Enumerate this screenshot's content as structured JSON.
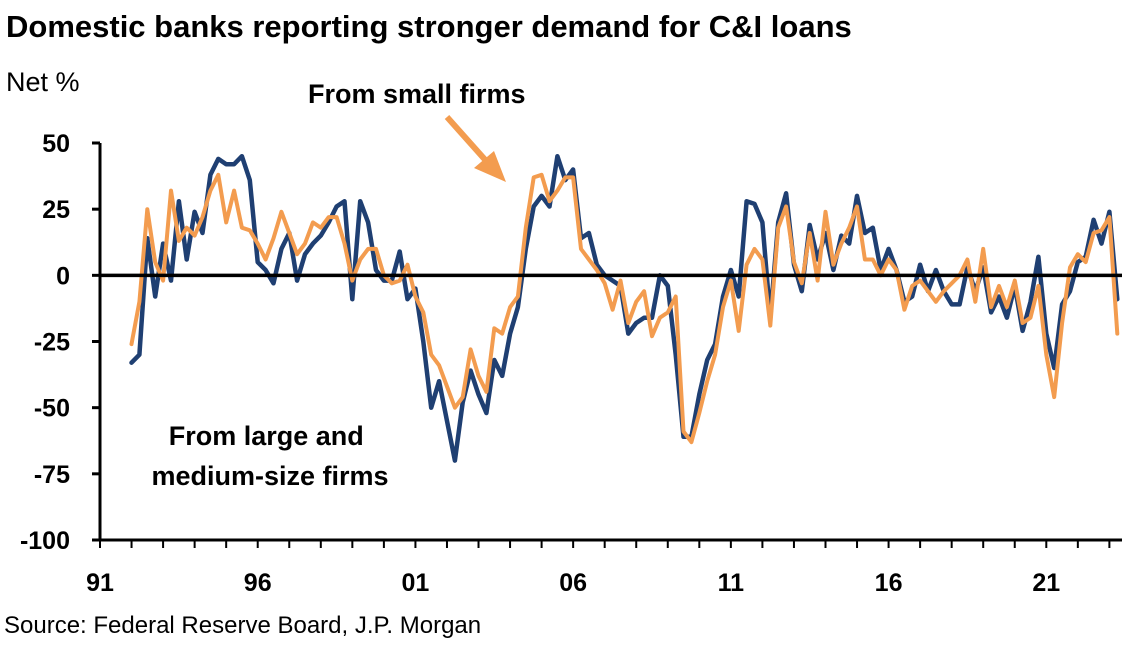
{
  "chart_data": {
    "type": "line",
    "title": "Domestic banks reporting stronger demand for C&I loans",
    "ylabel": "Net %",
    "ylim": [
      -100,
      50
    ],
    "yticks": [
      50,
      25,
      0,
      -25,
      -50,
      -75,
      -100
    ],
    "xlim": [
      1991,
      2023.4
    ],
    "xticks": [
      1991,
      1996,
      2001,
      2006,
      2011,
      2016,
      2021
    ],
    "xtick_labels": [
      "91",
      "96",
      "01",
      "06",
      "11",
      "16",
      "21"
    ],
    "zero_line": true,
    "grid": false,
    "source": "Source: Federal Reserve Board, J.P. Morgan",
    "annotations": [
      {
        "text": "From small firms",
        "arrow": true,
        "series": "small"
      },
      {
        "text_lines": [
          "From large and",
          "medium-size firms"
        ],
        "series": "large"
      }
    ],
    "series": [
      {
        "id": "large",
        "color": "#1f3f72",
        "points": [
          [
            1992.0,
            -33
          ],
          [
            1992.25,
            -30
          ],
          [
            1992.5,
            14
          ],
          [
            1992.75,
            -8
          ],
          [
            1993.0,
            12
          ],
          [
            1993.25,
            -2
          ],
          [
            1993.5,
            28
          ],
          [
            1993.75,
            6
          ],
          [
            1994.0,
            24
          ],
          [
            1994.25,
            16
          ],
          [
            1994.5,
            38
          ],
          [
            1994.75,
            44
          ],
          [
            1995.0,
            42
          ],
          [
            1995.25,
            42
          ],
          [
            1995.5,
            45
          ],
          [
            1995.75,
            36
          ],
          [
            1996.0,
            5
          ],
          [
            1996.25,
            2
          ],
          [
            1996.5,
            -3
          ],
          [
            1996.75,
            10
          ],
          [
            1997.0,
            16
          ],
          [
            1997.25,
            -2
          ],
          [
            1997.5,
            8
          ],
          [
            1997.75,
            12
          ],
          [
            1998.0,
            15
          ],
          [
            1998.25,
            20
          ],
          [
            1998.5,
            26
          ],
          [
            1998.75,
            28
          ],
          [
            1999.0,
            -9
          ],
          [
            1999.25,
            28
          ],
          [
            1999.5,
            20
          ],
          [
            1999.75,
            2
          ],
          [
            2000.0,
            -2
          ],
          [
            2000.25,
            -2
          ],
          [
            2000.5,
            9
          ],
          [
            2000.75,
            -9
          ],
          [
            2001.0,
            -5
          ],
          [
            2001.25,
            -25
          ],
          [
            2001.5,
            -50
          ],
          [
            2001.75,
            -40
          ],
          [
            2002.0,
            -55
          ],
          [
            2002.25,
            -70
          ],
          [
            2002.5,
            -48
          ],
          [
            2002.75,
            -36
          ],
          [
            2003.0,
            -45
          ],
          [
            2003.25,
            -52
          ],
          [
            2003.5,
            -32
          ],
          [
            2003.75,
            -38
          ],
          [
            2004.0,
            -22
          ],
          [
            2004.25,
            -12
          ],
          [
            2004.5,
            10
          ],
          [
            2004.75,
            26
          ],
          [
            2005.0,
            30
          ],
          [
            2005.25,
            26
          ],
          [
            2005.5,
            45
          ],
          [
            2005.75,
            36
          ],
          [
            2006.0,
            40
          ],
          [
            2006.25,
            14
          ],
          [
            2006.5,
            16
          ],
          [
            2006.75,
            4
          ],
          [
            2007.0,
            0
          ],
          [
            2007.25,
            -2
          ],
          [
            2007.5,
            -4
          ],
          [
            2007.75,
            -22
          ],
          [
            2008.0,
            -18
          ],
          [
            2008.25,
            -16
          ],
          [
            2008.5,
            -16
          ],
          [
            2008.75,
            0
          ],
          [
            2009.0,
            -4
          ],
          [
            2009.25,
            -30
          ],
          [
            2009.5,
            -61
          ],
          [
            2009.75,
            -61
          ],
          [
            2010.0,
            -45
          ],
          [
            2010.25,
            -32
          ],
          [
            2010.5,
            -26
          ],
          [
            2010.75,
            -8
          ],
          [
            2011.0,
            2
          ],
          [
            2011.25,
            -8
          ],
          [
            2011.5,
            28
          ],
          [
            2011.75,
            27
          ],
          [
            2012.0,
            20
          ],
          [
            2012.25,
            -16
          ],
          [
            2012.5,
            20
          ],
          [
            2012.75,
            31
          ],
          [
            2013.0,
            4
          ],
          [
            2013.25,
            -6
          ],
          [
            2013.5,
            19
          ],
          [
            2013.75,
            6
          ],
          [
            2014.0,
            16
          ],
          [
            2014.25,
            2
          ],
          [
            2014.5,
            15
          ],
          [
            2014.75,
            12
          ],
          [
            2015.0,
            30
          ],
          [
            2015.25,
            16
          ],
          [
            2015.5,
            18
          ],
          [
            2015.75,
            2
          ],
          [
            2016.0,
            10
          ],
          [
            2016.25,
            2
          ],
          [
            2016.5,
            -10
          ],
          [
            2016.75,
            -8
          ],
          [
            2017.0,
            4
          ],
          [
            2017.25,
            -6
          ],
          [
            2017.5,
            2
          ],
          [
            2017.75,
            -6
          ],
          [
            2018.0,
            -11
          ],
          [
            2018.25,
            -11
          ],
          [
            2018.5,
            3
          ],
          [
            2018.75,
            -6
          ],
          [
            2019.0,
            3
          ],
          [
            2019.25,
            -14
          ],
          [
            2019.5,
            -8
          ],
          [
            2019.75,
            -16
          ],
          [
            2020.0,
            -4
          ],
          [
            2020.25,
            -21
          ],
          [
            2020.5,
            -10
          ],
          [
            2020.75,
            7
          ],
          [
            2021.0,
            -22
          ],
          [
            2021.25,
            -35
          ],
          [
            2021.5,
            -11
          ],
          [
            2021.75,
            -6
          ],
          [
            2022.0,
            5
          ],
          [
            2022.25,
            7
          ],
          [
            2022.5,
            21
          ],
          [
            2022.75,
            12
          ],
          [
            2023.0,
            24
          ],
          [
            2023.25,
            -9
          ]
        ]
      },
      {
        "id": "small",
        "color": "#f39c4f",
        "points": [
          [
            1992.0,
            -26
          ],
          [
            1992.25,
            -10
          ],
          [
            1992.5,
            25
          ],
          [
            1992.75,
            5
          ],
          [
            1993.0,
            -2
          ],
          [
            1993.25,
            32
          ],
          [
            1993.5,
            13
          ],
          [
            1993.75,
            18
          ],
          [
            1994.0,
            15
          ],
          [
            1994.25,
            22
          ],
          [
            1994.5,
            32
          ],
          [
            1994.75,
            38
          ],
          [
            1995.0,
            20
          ],
          [
            1995.25,
            32
          ],
          [
            1995.5,
            18
          ],
          [
            1995.75,
            17
          ],
          [
            1996.0,
            12
          ],
          [
            1996.25,
            6
          ],
          [
            1996.5,
            14
          ],
          [
            1996.75,
            24
          ],
          [
            1997.0,
            16
          ],
          [
            1997.25,
            8
          ],
          [
            1997.5,
            12
          ],
          [
            1997.75,
            20
          ],
          [
            1998.0,
            18
          ],
          [
            1998.25,
            22
          ],
          [
            1998.5,
            22
          ],
          [
            1998.75,
            12
          ],
          [
            1999.0,
            -2
          ],
          [
            1999.25,
            6
          ],
          [
            1999.5,
            10
          ],
          [
            1999.75,
            10
          ],
          [
            2000.0,
            0
          ],
          [
            2000.25,
            -3
          ],
          [
            2000.5,
            -2
          ],
          [
            2000.75,
            4
          ],
          [
            2001.0,
            -8
          ],
          [
            2001.25,
            -14
          ],
          [
            2001.5,
            -30
          ],
          [
            2001.75,
            -34
          ],
          [
            2002.0,
            -42
          ],
          [
            2002.25,
            -50
          ],
          [
            2002.5,
            -46
          ],
          [
            2002.75,
            -28
          ],
          [
            2003.0,
            -38
          ],
          [
            2003.25,
            -44
          ],
          [
            2003.5,
            -20
          ],
          [
            2003.75,
            -22
          ],
          [
            2004.0,
            -12
          ],
          [
            2004.25,
            -8
          ],
          [
            2004.5,
            18
          ],
          [
            2004.75,
            37
          ],
          [
            2005.0,
            38
          ],
          [
            2005.25,
            28
          ],
          [
            2005.5,
            32
          ],
          [
            2005.75,
            37
          ],
          [
            2006.0,
            37
          ],
          [
            2006.25,
            10
          ],
          [
            2006.5,
            6
          ],
          [
            2006.75,
            2
          ],
          [
            2007.0,
            -3
          ],
          [
            2007.25,
            -13
          ],
          [
            2007.5,
            -2
          ],
          [
            2007.75,
            -18
          ],
          [
            2008.0,
            -10
          ],
          [
            2008.25,
            -6
          ],
          [
            2008.5,
            -23
          ],
          [
            2008.75,
            -16
          ],
          [
            2009.0,
            -14
          ],
          [
            2009.25,
            -8
          ],
          [
            2009.5,
            -59
          ],
          [
            2009.75,
            -63
          ],
          [
            2010.0,
            -52
          ],
          [
            2010.25,
            -40
          ],
          [
            2010.5,
            -30
          ],
          [
            2010.75,
            -12
          ],
          [
            2011.0,
            -2
          ],
          [
            2011.25,
            -21
          ],
          [
            2011.5,
            4
          ],
          [
            2011.75,
            10
          ],
          [
            2012.0,
            6
          ],
          [
            2012.25,
            -19
          ],
          [
            2012.5,
            18
          ],
          [
            2012.75,
            26
          ],
          [
            2013.0,
            5
          ],
          [
            2013.25,
            -3
          ],
          [
            2013.5,
            16
          ],
          [
            2013.75,
            -2
          ],
          [
            2014.0,
            24
          ],
          [
            2014.25,
            4
          ],
          [
            2014.5,
            12
          ],
          [
            2014.75,
            18
          ],
          [
            2015.0,
            26
          ],
          [
            2015.25,
            6
          ],
          [
            2015.5,
            6
          ],
          [
            2015.75,
            0
          ],
          [
            2016.0,
            6
          ],
          [
            2016.25,
            2
          ],
          [
            2016.5,
            -13
          ],
          [
            2016.75,
            -4
          ],
          [
            2017.0,
            -2
          ],
          [
            2017.25,
            -6
          ],
          [
            2017.5,
            -10
          ],
          [
            2017.75,
            -6
          ],
          [
            2018.0,
            -3
          ],
          [
            2018.25,
            0
          ],
          [
            2018.5,
            6
          ],
          [
            2018.75,
            -10
          ],
          [
            2019.0,
            10
          ],
          [
            2019.25,
            -12
          ],
          [
            2019.5,
            -4
          ],
          [
            2019.75,
            -12
          ],
          [
            2020.0,
            -2
          ],
          [
            2020.25,
            -18
          ],
          [
            2020.5,
            -16
          ],
          [
            2020.75,
            -4
          ],
          [
            2021.0,
            -30
          ],
          [
            2021.25,
            -46
          ],
          [
            2021.5,
            -18
          ],
          [
            2021.75,
            3
          ],
          [
            2022.0,
            8
          ],
          [
            2022.25,
            5
          ],
          [
            2022.5,
            16
          ],
          [
            2022.75,
            17
          ],
          [
            2023.0,
            22
          ],
          [
            2023.25,
            -22
          ]
        ]
      }
    ]
  }
}
